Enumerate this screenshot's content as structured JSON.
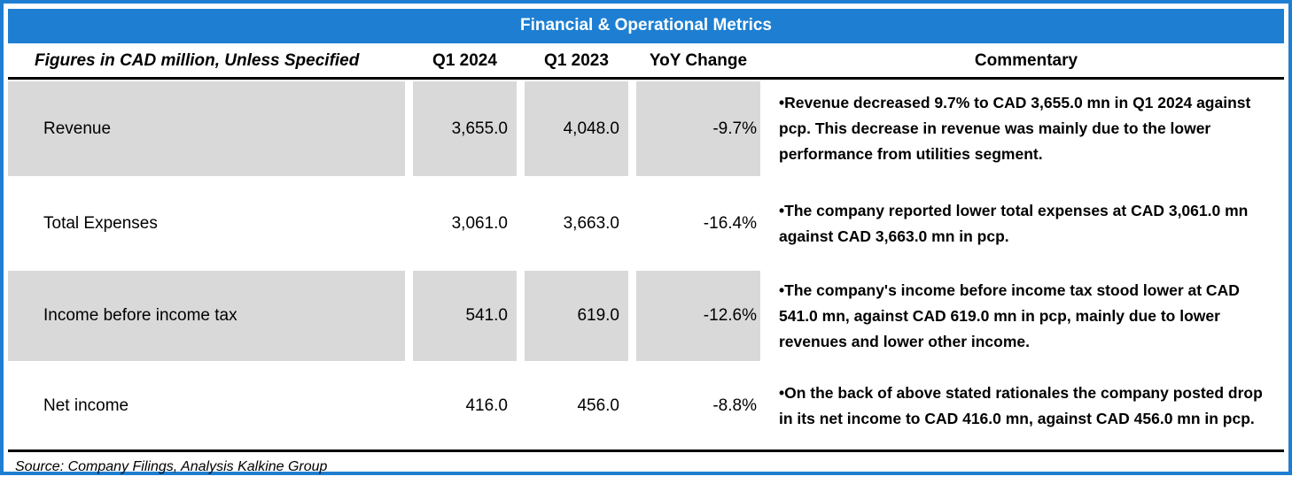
{
  "title": "Financial & Operational Metrics",
  "colors": {
    "accent_blue": "#1e7fd2",
    "row_gray": "#d9d9d9"
  },
  "table": {
    "header": {
      "label": "Figures in CAD million, Unless Specified",
      "col_q1_2024": "Q1 2024",
      "col_q1_2023": "Q1 2023",
      "col_yoy": "YoY Change",
      "col_commentary": "Commentary"
    },
    "rows": [
      {
        "label": "Revenue",
        "q1_2024": "3,655.0",
        "q1_2023": "4,048.0",
        "yoy": "-9.7%",
        "commentary": "•Revenue decreased 9.7% to CAD 3,655.0 mn in Q1 2024 against pcp. This decrease in revenue was mainly due to the lower performance from utilities segment."
      },
      {
        "label": "Total Expenses",
        "q1_2024": "3,061.0",
        "q1_2023": "3,663.0",
        "yoy": "-16.4%",
        "commentary": "•The company reported lower total expenses at CAD 3,061.0 mn against CAD 3,663.0 mn in pcp."
      },
      {
        "label": "Income before income tax",
        "q1_2024": "541.0",
        "q1_2023": "619.0",
        "yoy": "-12.6%",
        "commentary": "•The company's income before income tax stood lower at CAD 541.0 mn, against CAD 619.0 mn in pcp, mainly due to lower revenues and lower other income."
      },
      {
        "label": "Net income",
        "q1_2024": "416.0",
        "q1_2023": "456.0",
        "yoy": "-8.8%",
        "commentary": "•On the back of above stated rationales the company posted drop in its net income to CAD 416.0 mn, against CAD 456.0 mn in pcp."
      }
    ]
  },
  "source": "Source: Company Filings, Analysis Kalkine Group"
}
